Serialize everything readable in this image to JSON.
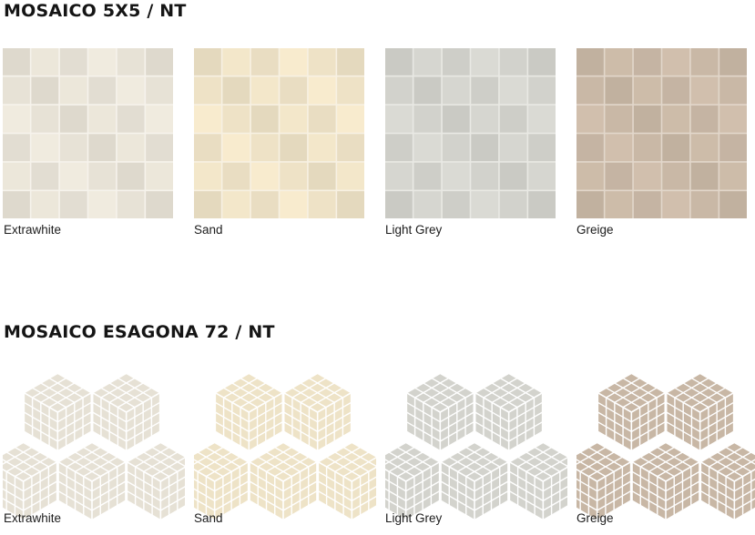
{
  "sections": [
    {
      "title": "MOSAICO 5X5 / NT",
      "items": [
        {
          "label": "Extrawhite",
          "color": "#e7e2d6",
          "grout": "#f6f3ec"
        },
        {
          "label": "Sand",
          "color": "#eee2c6",
          "grout": "#f7f1e3"
        },
        {
          "label": "Light Grey",
          "color": "#d2d2cc",
          "grout": "#e9e9e4"
        },
        {
          "label": "Greige",
          "color": "#c9b8a6",
          "grout": "#e2d7cb"
        }
      ]
    },
    {
      "title": "MOSAICO ESAGONA 72 / NT",
      "items": [
        {
          "label": "Extrawhite",
          "color": "#e6e1d5",
          "grout": "#ffffff"
        },
        {
          "label": "Sand",
          "color": "#eee3c7",
          "grout": "#ffffff"
        },
        {
          "label": "Light Grey",
          "color": "#d3d3cd",
          "grout": "#ffffff"
        },
        {
          "label": "Greige",
          "color": "#c8b7a5",
          "grout": "#ffffff"
        }
      ]
    }
  ]
}
